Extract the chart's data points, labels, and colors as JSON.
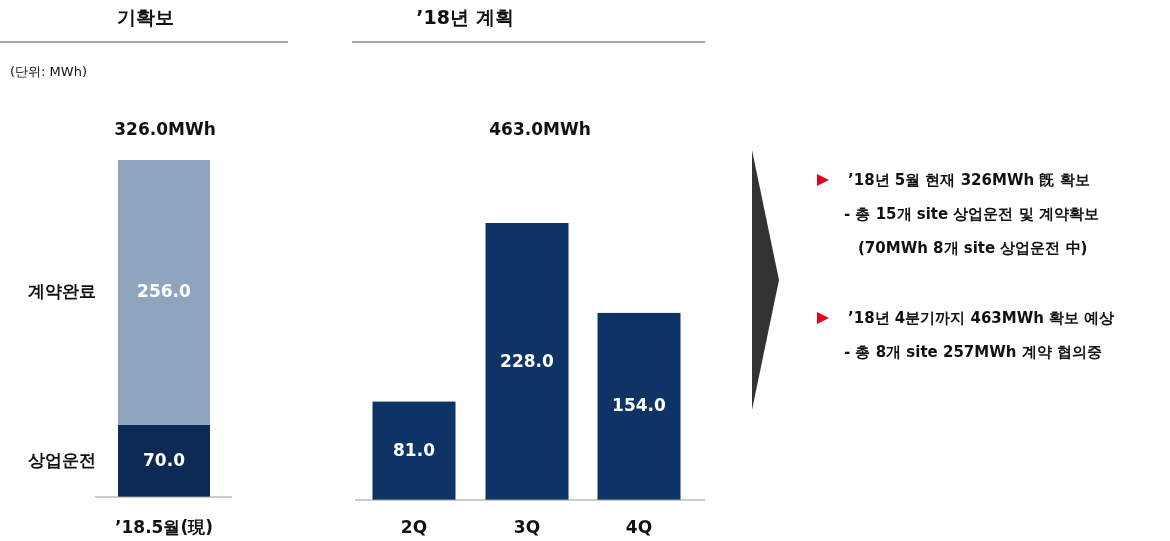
{
  "chart_data": [
    {
      "type": "bar",
      "stacked": true,
      "title": "기확보",
      "annotations": [
        "(단위: MWh)"
      ],
      "categories": [
        "’18.5월(現)"
      ],
      "series": [
        {
          "name": "상업운전",
          "color": "#0d2a55",
          "values": [
            70.0
          ],
          "value_labels": [
            "70.0"
          ]
        },
        {
          "name": "계약완료",
          "color": "#8ea5bd",
          "values": [
            256.0
          ],
          "value_labels": [
            "256.0"
          ]
        }
      ],
      "totals": [
        "326.0MWh"
      ]
    },
    {
      "type": "bar",
      "title": "’18년 계획",
      "annotations": [
        "463.0MWh"
      ],
      "categories": [
        "2Q",
        "3Q",
        "4Q"
      ],
      "values": [
        81.0,
        228.0,
        154.0
      ],
      "value_labels": [
        "81.0",
        "228.0",
        "154.0"
      ],
      "color": "#0e3466"
    },
    {
      "type": "other",
      "annotations": [
        "’18년 5월 현재 326MWh 旣 확보",
        "- 총 15개 site 상업운전 및 계약확보",
        "(70MWh 8개 site 상업운전 中)",
        "’18년 4분기까지 463MWh 확보 예상",
        "- 총 8개 site 257MWh 계약 협의중"
      ]
    }
  ]
}
